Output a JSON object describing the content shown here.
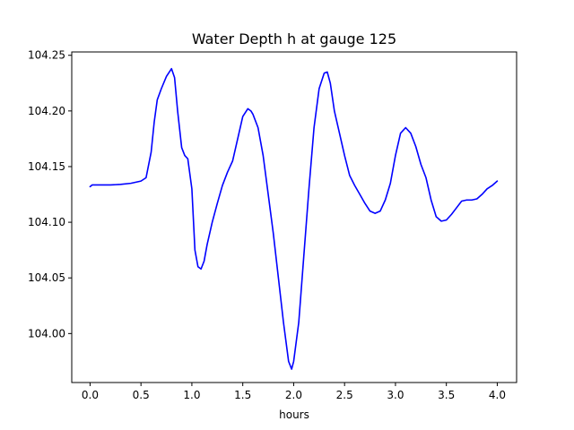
{
  "chart_data": {
    "type": "line",
    "title": "Water Depth h at gauge 125",
    "xlabel": "hours",
    "ylabel": "",
    "xlim": [
      -0.18,
      4.19
    ],
    "ylim": [
      103.956,
      104.253
    ],
    "xticks": [
      0.0,
      0.5,
      1.0,
      1.5,
      2.0,
      2.5,
      3.0,
      3.5,
      4.0
    ],
    "xtick_labels": [
      "0.0",
      "0.5",
      "1.0",
      "1.5",
      "2.0",
      "2.5",
      "3.0",
      "3.5",
      "4.0"
    ],
    "yticks": [
      104.0,
      104.05,
      104.1,
      104.15,
      104.2,
      104.25
    ],
    "ytick_labels": [
      "104.00",
      "104.05",
      "104.10",
      "104.15",
      "104.20",
      "104.25"
    ],
    "grid": false,
    "series": [
      {
        "color": "#0000ff",
        "x": [
          0.0,
          0.02,
          0.1,
          0.2,
          0.3,
          0.4,
          0.5,
          0.55,
          0.6,
          0.63,
          0.66,
          0.7,
          0.75,
          0.8,
          0.83,
          0.86,
          0.9,
          0.93,
          0.96,
          1.0,
          1.03,
          1.06,
          1.09,
          1.12,
          1.15,
          1.2,
          1.25,
          1.3,
          1.35,
          1.4,
          1.45,
          1.5,
          1.55,
          1.58,
          1.6,
          1.65,
          1.7,
          1.75,
          1.8,
          1.85,
          1.9,
          1.95,
          1.98,
          2.0,
          2.05,
          2.1,
          2.15,
          2.2,
          2.25,
          2.3,
          2.33,
          2.36,
          2.4,
          2.45,
          2.5,
          2.55,
          2.6,
          2.65,
          2.7,
          2.75,
          2.8,
          2.85,
          2.9,
          2.95,
          3.0,
          3.05,
          3.1,
          3.15,
          3.2,
          3.25,
          3.3,
          3.35,
          3.4,
          3.45,
          3.5,
          3.55,
          3.6,
          3.65,
          3.7,
          3.75,
          3.8,
          3.85,
          3.9,
          3.95,
          4.0
        ],
        "y": [
          104.132,
          104.1335,
          104.1335,
          104.1335,
          104.134,
          104.135,
          104.137,
          104.14,
          104.163,
          104.19,
          104.21,
          104.22,
          104.231,
          104.238,
          104.23,
          104.2,
          104.167,
          104.16,
          104.157,
          104.13,
          104.075,
          104.06,
          104.058,
          104.065,
          104.08,
          104.1,
          104.117,
          104.133,
          104.145,
          104.155,
          104.175,
          104.195,
          104.202,
          104.2,
          104.197,
          104.185,
          104.16,
          104.125,
          104.09,
          104.05,
          104.01,
          103.975,
          103.968,
          103.975,
          104.01,
          104.07,
          104.13,
          104.185,
          104.22,
          104.234,
          104.235,
          104.225,
          104.2,
          104.18,
          104.16,
          104.142,
          104.133,
          104.125,
          104.117,
          104.11,
          104.108,
          104.11,
          104.12,
          104.135,
          104.16,
          104.18,
          104.185,
          104.18,
          104.168,
          104.152,
          104.14,
          104.12,
          104.105,
          104.101,
          104.102,
          104.107,
          104.113,
          104.119,
          104.12,
          104.12,
          104.121,
          104.125,
          104.13,
          104.133,
          104.137
        ]
      }
    ]
  }
}
